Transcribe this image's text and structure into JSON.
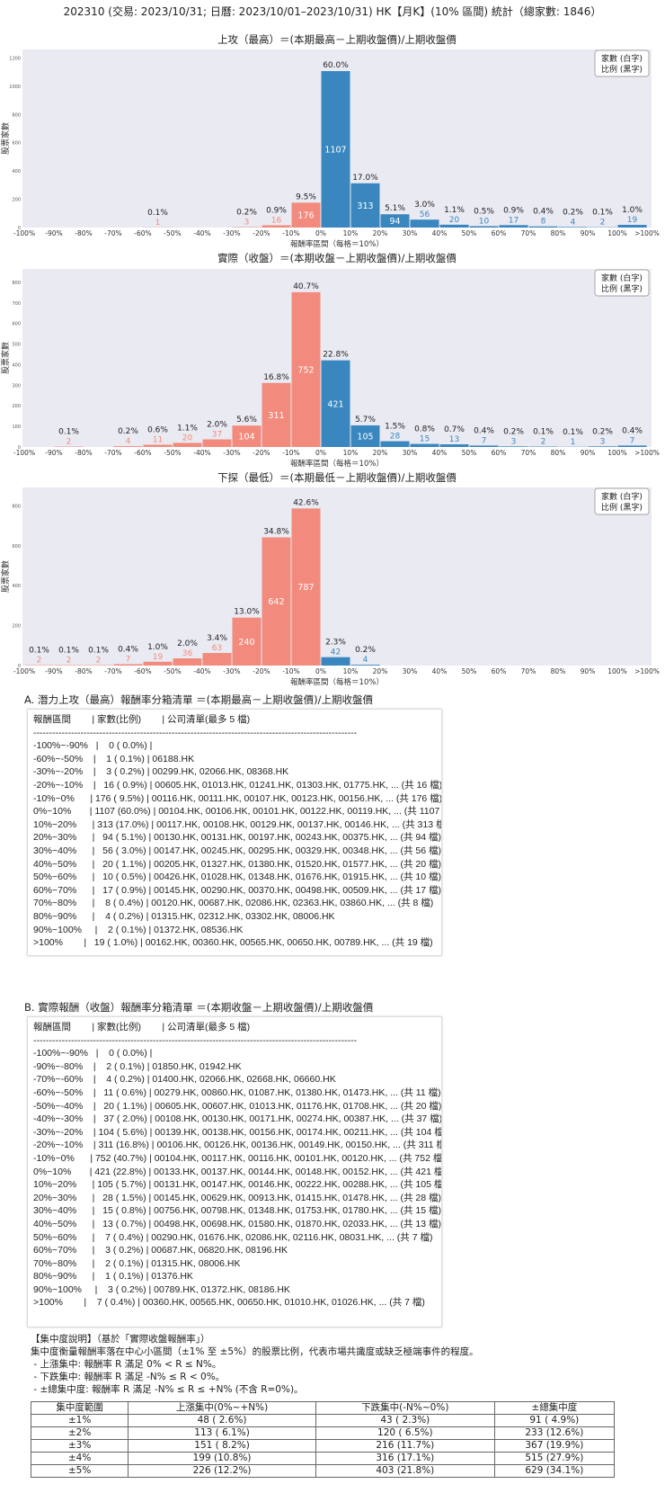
{
  "page_title": "202310 (交易: 2023/10/31; 日曆: 2023/10/01–2023/10/31) HK【月K】(10% 區間) 統計（總家數: 1846）",
  "colors": {
    "negative": "#f28b7e",
    "positive": "#3a87bf",
    "plot_bg": "#eaeaf2"
  },
  "chart_data": [
    {
      "type": "bar",
      "title": "上攻（最高）＝(本期最高－上期收盤價)/上期收盤價",
      "xlabel": "報酬率區間（每格＝10%）",
      "ylabel": "股票家數",
      "x_ticks": [
        "-100%",
        "-90%",
        "-80%",
        "-70%",
        "-60%",
        "-50%",
        "-40%",
        "-30%",
        "-20%",
        "-10%",
        "0%",
        "10%",
        "20%",
        "30%",
        "40%",
        "50%",
        "60%",
        "70%",
        "80%",
        "90%",
        "100%",
        ">100%"
      ],
      "y_ticks": [
        0,
        200,
        400,
        600,
        800,
        1000,
        1200
      ],
      "ylim": [
        0,
        1260
      ],
      "counts": [
        0,
        0,
        0,
        0,
        1,
        0,
        0,
        3,
        16,
        176,
        1107,
        313,
        94,
        56,
        20,
        10,
        17,
        8,
        4,
        2,
        19
      ],
      "percent_labels": [
        "",
        "",
        "",
        "",
        "0.1%",
        "",
        "",
        "0.2%",
        "0.9%",
        "9.5%",
        "60.0%",
        "17.0%",
        "5.1%",
        "3.0%",
        "1.1%",
        "0.5%",
        "0.9%",
        "0.4%",
        "0.2%",
        "0.1%",
        "1.0%"
      ],
      "legend": [
        "家數 (白字)",
        "比例 (黑字)"
      ],
      "grid": false
    },
    {
      "type": "bar",
      "title": "實際（收盤）＝(本期收盤－上期收盤價)/上期收盤價",
      "xlabel": "報酬率區間（每格＝10%）",
      "ylabel": "股票家數",
      "x_ticks": [
        "-100%",
        "-90%",
        "-80%",
        "-70%",
        "-60%",
        "-50%",
        "-40%",
        "-30%",
        "-20%",
        "-10%",
        "0%",
        "10%",
        "20%",
        "30%",
        "40%",
        "50%",
        "60%",
        "70%",
        "80%",
        "90%",
        "100%",
        ">100%"
      ],
      "y_ticks": [
        0,
        100,
        200,
        300,
        400,
        500,
        600,
        700,
        800
      ],
      "ylim": [
        0,
        865
      ],
      "counts": [
        0,
        2,
        0,
        4,
        11,
        20,
        37,
        104,
        311,
        752,
        421,
        105,
        28,
        15,
        13,
        7,
        3,
        2,
        1,
        3,
        7
      ],
      "percent_labels": [
        "",
        "0.1%",
        "",
        "0.2%",
        "0.6%",
        "1.1%",
        "2.0%",
        "5.6%",
        "16.8%",
        "40.7%",
        "22.8%",
        "5.7%",
        "1.5%",
        "0.8%",
        "0.7%",
        "0.4%",
        "0.2%",
        "0.1%",
        "0.1%",
        "0.2%",
        "0.4%"
      ],
      "legend": [
        "家數 (白字)",
        "比例 (黑字)"
      ],
      "grid": false
    },
    {
      "type": "bar",
      "title": "下探（最低）＝(本期最低－上期收盤價)/上期收盤價",
      "xlabel": "報酬率區間（每格＝10%）",
      "ylabel": "股票家數",
      "x_ticks": [
        "-100%",
        "-90%",
        "-80%",
        "-70%",
        "-60%",
        "-50%",
        "-40%",
        "-30%",
        "-20%",
        "-10%",
        "0%",
        "10%",
        "20%",
        "30%",
        "40%",
        "50%",
        "60%",
        "70%",
        "80%",
        "90%",
        "100%",
        ">100%"
      ],
      "y_ticks": [
        0,
        200,
        400,
        600,
        800
      ],
      "ylim": [
        0,
        892
      ],
      "counts": [
        2,
        2,
        2,
        7,
        19,
        36,
        63,
        240,
        642,
        787,
        42,
        4,
        0,
        0,
        0,
        0,
        0,
        0,
        0,
        0,
        0
      ],
      "percent_labels": [
        "0.1%",
        "0.1%",
        "0.1%",
        "0.4%",
        "1.0%",
        "2.0%",
        "3.4%",
        "13.0%",
        "34.8%",
        "42.6%",
        "2.3%",
        "0.2%",
        "",
        "",
        "",
        "",
        "",
        "",
        "",
        "",
        ""
      ],
      "legend": [
        "家數 (白字)",
        "比例 (黑字)"
      ],
      "grid": false
    }
  ],
  "list_a": {
    "title": "A. 潛力上攻（最高）報酬率分箱清單 ＝(本期最高－上期收盤價)/上期收盤價",
    "lines": [
      "報酬區間        | 家數(比例)        | 公司清單(最多 5 檔)",
      "-------------------------------------------------------------------------------------------------------",
      "-100%~-90%   |    0 ( 0.0%) |",
      "-60%~-50%    |    1 ( 0.1%) | 06188.HK",
      "-30%~-20%    |    3 ( 0.2%) | 00299.HK, 02066.HK, 08368.HK",
      "-20%~-10%    |   16 ( 0.9%) | 00605.HK, 01013.HK, 01241.HK, 01303.HK, 01775.HK, ... (共 16 檔)",
      "-10%~0%      | 176 ( 9.5%) | 00116.HK, 00111.HK, 00107.HK, 00123.HK, 00156.HK, ... (共 176 檔)",
      "0%~10%       | 1107 (60.0%) | 00104.HK, 00106.HK, 00101.HK, 00122.HK, 00119.HK, ... (共 1107 檔)",
      "10%~20%      | 313 (17.0%) | 00117.HK, 00108.HK, 00129.HK, 00137.HK, 00146.HK, ... (共 313 檔)",
      "20%~30%      |   94 ( 5.1%) | 00130.HK, 00131.HK, 00197.HK, 00243.HK, 00375.HK, ... (共 94 檔)",
      "30%~40%      |   56 ( 3.0%) | 00147.HK, 00245.HK, 00295.HK, 00329.HK, 00348.HK, ... (共 56 檔)",
      "40%~50%      |   20 ( 1.1%) | 00205.HK, 01327.HK, 01380.HK, 01520.HK, 01577.HK, ... (共 20 檔)",
      "50%~60%      |   10 ( 0.5%) | 00426.HK, 01028.HK, 01348.HK, 01676.HK, 01915.HK, ... (共 10 檔)",
      "60%~70%      |   17 ( 0.9%) | 00145.HK, 00290.HK, 00370.HK, 00498.HK, 00509.HK, ... (共 17 檔)",
      "70%~80%      |    8 ( 0.4%) | 00120.HK, 00687.HK, 02086.HK, 02363.HK, 03860.HK, ... (共 8 檔)",
      "80%~90%      |    4 ( 0.2%) | 01315.HK, 02312.HK, 03302.HK, 08006.HK",
      "90%~100%     |    2 ( 0.1%) | 01372.HK, 08536.HK",
      ">100%        |   19 ( 1.0%) | 00162.HK, 00360.HK, 00565.HK, 00650.HK, 00789.HK, ... (共 19 檔)"
    ]
  },
  "list_b": {
    "title": "B. 實際報酬（收盤）報酬率分箱清單 ＝(本期收盤－上期收盤價)/上期收盤價",
    "lines": [
      "報酬區間        | 家數(比例)        | 公司清單(最多 5 檔)",
      "-------------------------------------------------------------------------------------------------------",
      "-100%~-90%   |    0 ( 0.0%) |",
      "-90%~-80%    |    2 ( 0.1%) | 01850.HK, 01942.HK",
      "-70%~-60%    |    4 ( 0.2%) | 01400.HK, 02066.HK, 02668.HK, 06660.HK",
      "-60%~-50%    |   11 ( 0.6%) | 00279.HK, 00860.HK, 01087.HK, 01380.HK, 01473.HK, ... (共 11 檔)",
      "-50%~-40%    |   20 ( 1.1%) | 00605.HK, 00607.HK, 01013.HK, 01176.HK, 01708.HK, ... (共 20 檔)",
      "-40%~-30%    |   37 ( 2.0%) | 00108.HK, 00130.HK, 00171.HK, 00274.HK, 00387.HK, ... (共 37 檔)",
      "-30%~-20%    | 104 ( 5.6%) | 00139.HK, 00138.HK, 00156.HK, 00174.HK, 00211.HK, ... (共 104 檔)",
      "-20%~-10%    | 311 (16.8%) | 00106.HK, 00126.HK, 00136.HK, 00149.HK, 00150.HK, ... (共 311 檔)",
      "-10%~0%      | 752 (40.7%) | 00104.HK, 00117.HK, 00116.HK, 00101.HK, 00120.HK, ... (共 752 檔)",
      "0%~10%       | 421 (22.8%) | 00133.HK, 00137.HK, 00144.HK, 00148.HK, 00152.HK, ... (共 421 檔)",
      "10%~20%      | 105 ( 5.7%) | 00131.HK, 00147.HK, 00146.HK, 00222.HK, 00288.HK, ... (共 105 檔)",
      "20%~30%      |   28 ( 1.5%) | 00145.HK, 00629.HK, 00913.HK, 01415.HK, 01478.HK, ... (共 28 檔)",
      "30%~40%      |   15 ( 0.8%) | 00756.HK, 00798.HK, 01348.HK, 01753.HK, 01780.HK, ... (共 15 檔)",
      "40%~50%      |   13 ( 0.7%) | 00498.HK, 00698.HK, 01580.HK, 01870.HK, 02033.HK, ... (共 13 檔)",
      "50%~60%      |    7 ( 0.4%) | 00290.HK, 01676.HK, 02086.HK, 02116.HK, 08031.HK, ... (共 7 檔)",
      "60%~70%      |    3 ( 0.2%) | 00687.HK, 06820.HK, 08196.HK",
      "70%~80%      |    2 ( 0.1%) | 01315.HK, 08006.HK",
      "80%~90%      |    1 ( 0.1%) | 01376.HK",
      "90%~100%     |    3 ( 0.2%) | 00789.HK, 01372.HK, 08186.HK",
      ">100%        |    7 ( 0.4%) | 00360.HK, 00565.HK, 00650.HK, 01010.HK, 01026.HK, ... (共 7 檔)"
    ]
  },
  "concentration": {
    "lines": [
      "【集中度說明】（基於「實際收盤報酬率」）",
      "集中度衡量報酬率落在中心小區間（±1% 至 ±5%）的股票比例，代表市場共識度或缺乏極端事件的程度。",
      " - 上漲集中: 報酬率 R 滿足 0% < R ≤ N%。",
      " - 下跌集中: 報酬率 R 滿足 -N% ≤ R < 0%。",
      " - ±總集中度: 報酬率 R 滿足 -N% ≤ R ≤ +N% (不含 R=0%)。"
    ],
    "headers": [
      "集中度範圍",
      "上漲集中(0%~+N%)",
      "下跌集中(-N%~0%)",
      "±總集中度"
    ],
    "rows": [
      [
        "±1%",
        "48 ( 2.6%)",
        "43 ( 2.3%)",
        "91 ( 4.9%)"
      ],
      [
        "±2%",
        "113 ( 6.1%)",
        "120 ( 6.5%)",
        "233 (12.6%)"
      ],
      [
        "±3%",
        "151 ( 8.2%)",
        "216 (11.7%)",
        "367 (19.9%)"
      ],
      [
        "±4%",
        "199 (10.8%)",
        "316 (17.1%)",
        "515 (27.9%)"
      ],
      [
        "±5%",
        "226 (12.2%)",
        "403 (21.8%)",
        "629 (34.1%)"
      ]
    ]
  }
}
